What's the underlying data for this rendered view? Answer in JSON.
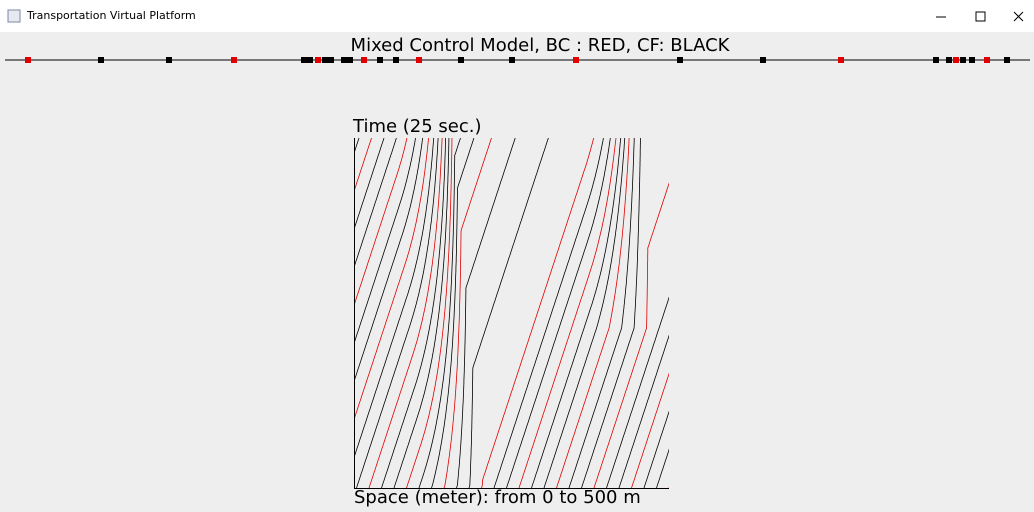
{
  "window": {
    "title": "Transportation Virtual Platform"
  },
  "header": {
    "title": "Mixed Control Model, BC : RED, CF: BLACK"
  },
  "plot": {
    "y_label": "Time (25 sec.)",
    "x_label": "Space (meter): from 0 to 500 m"
  }
}
